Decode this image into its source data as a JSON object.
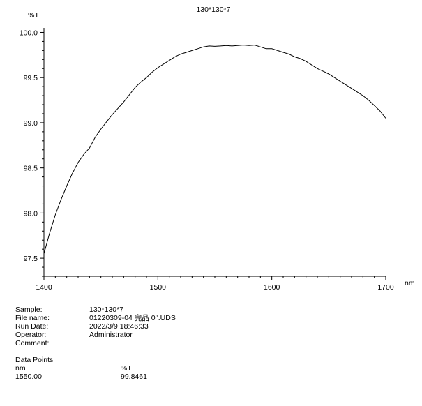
{
  "chart_data": {
    "type": "line",
    "title": "130*130*7",
    "xlabel": "nm",
    "ylabel": "%T",
    "xlim": [
      1400,
      1700
    ],
    "ylim": [
      97.3,
      100.05
    ],
    "x_ticks": [
      "1400",
      "1500",
      "1600",
      "1700"
    ],
    "y_ticks": [
      "97.5",
      "98.0",
      "98.5",
      "99.0",
      "99.5",
      "100.0"
    ],
    "grid": false,
    "series": [
      {
        "x": [
          1400,
          1405,
          1410,
          1415,
          1420,
          1425,
          1430,
          1435,
          1440,
          1445,
          1450,
          1455,
          1460,
          1465,
          1470,
          1475,
          1480,
          1485,
          1490,
          1495,
          1500,
          1505,
          1510,
          1515,
          1520,
          1525,
          1530,
          1535,
          1540,
          1545,
          1550,
          1555,
          1560,
          1565,
          1570,
          1575,
          1580,
          1585,
          1590,
          1595,
          1600,
          1605,
          1610,
          1615,
          1620,
          1625,
          1630,
          1635,
          1640,
          1645,
          1650,
          1655,
          1660,
          1665,
          1670,
          1675,
          1680,
          1685,
          1690,
          1695,
          1700
        ],
        "y": [
          97.55,
          97.78,
          97.98,
          98.15,
          98.3,
          98.44,
          98.56,
          98.65,
          98.72,
          98.84,
          98.93,
          99.01,
          99.09,
          99.16,
          99.23,
          99.31,
          99.39,
          99.45,
          99.5,
          99.56,
          99.61,
          99.65,
          99.69,
          99.73,
          99.76,
          99.78,
          99.8,
          99.82,
          99.84,
          99.85,
          99.846,
          99.85,
          99.855,
          99.85,
          99.855,
          99.86,
          99.855,
          99.86,
          99.84,
          99.82,
          99.82,
          99.8,
          99.78,
          99.76,
          99.73,
          99.71,
          99.68,
          99.64,
          99.6,
          99.57,
          99.54,
          99.5,
          99.46,
          99.42,
          99.38,
          99.34,
          99.3,
          99.25,
          99.19,
          99.13,
          99.05
        ]
      }
    ]
  },
  "info": {
    "sample_label": "Sample:",
    "sample_value": "130*130*7",
    "file_label": "File name:",
    "file_value": "01220309-04 完品 0°.UDS",
    "date_label": "Run Date:",
    "date_value": "2022/3/9 18:46:33",
    "operator_label": "Operator:",
    "operator_value": "Administrator",
    "comment_label": "Comment:"
  },
  "data_points": {
    "heading": "Data Points",
    "col1_header": "nm",
    "col2_header": "%T",
    "row_x": "1550.00",
    "row_y": "99.8461"
  }
}
